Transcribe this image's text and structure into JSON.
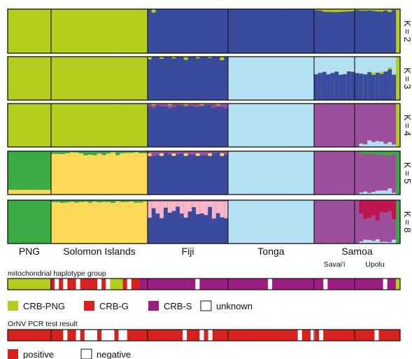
{
  "chart_data": {
    "type": "structure-bar",
    "groups": [
      {
        "label": "PNG",
        "n": 10
      },
      {
        "label": "Solomon Islands",
        "n": 21
      },
      {
        "label": "Fiji",
        "n": 20
      },
      {
        "label": "Tonga",
        "n": 20
      },
      {
        "label": "Samoa",
        "n": 21
      }
    ],
    "subgroups": [
      {
        "label": "Savai'i",
        "parent": "Samoa",
        "n": 10
      },
      {
        "label": "Upolu",
        "parent": "Samoa",
        "n": 11
      }
    ],
    "colors": {
      "lime": "#b5ce1e",
      "green": "#3aaa44",
      "yellow": "#fed857",
      "navy": "#3a4a9c",
      "lightblue": "#b5dff2",
      "purple": "#9c4f9a",
      "pink": "#f7b6c8",
      "crimson": "#c0144f",
      "red": "#d8201c",
      "magenta": "#9c1c82",
      "white": "#ffffff"
    },
    "panels": [
      {
        "label": "K = 2",
        "group_base": [
          "lime",
          "lime",
          "navy",
          "navy",
          "navy"
        ],
        "accent": {
          "lime": 0.02
        }
      },
      {
        "label": "K = 3",
        "group_base": [
          "lime",
          "lime",
          "navy",
          "lightblue",
          "lightblue"
        ],
        "note": "Samoa ~0.65 navy bottom, ~0.35 light blue top"
      },
      {
        "label": "K = 4",
        "group_base": [
          "lime",
          "lime",
          "navy",
          "lightblue",
          "purple"
        ]
      },
      {
        "label": "K = 5",
        "group_base": [
          "green",
          "yellow",
          "navy",
          "lightblue",
          "purple"
        ],
        "note": "PNG ~0.1 yellow; Samoa Upolu ~0.1 green"
      },
      {
        "label": "K = 8",
        "group_base": [
          "green",
          "yellow",
          "navy",
          "lightblue",
          "purple"
        ],
        "note": "Fiji ~0.3 pink; Samoa Upolu ~0.35 crimson"
      }
    ],
    "mito_track": {
      "title": "mitochondrial haplotype group",
      "legend": [
        {
          "label": "CRB-PNG",
          "color": "lime"
        },
        {
          "label": "CRB-G",
          "color": "red"
        },
        {
          "label": "CRB-S",
          "color": "magenta"
        },
        {
          "label": "unknown",
          "color": "white"
        }
      ]
    },
    "pcr_track": {
      "title": "OrNV PCR test result",
      "legend": [
        {
          "label": "positive",
          "color": "red"
        },
        {
          "label": "negative",
          "color": "white"
        }
      ]
    }
  }
}
